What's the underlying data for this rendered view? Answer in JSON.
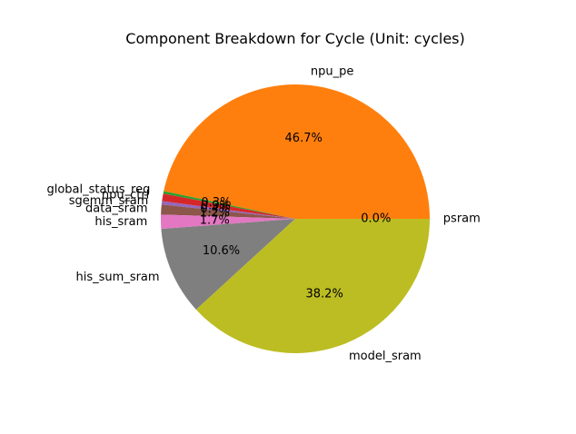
{
  "chart_data": {
    "type": "pie",
    "title": "Component Breakdown for Cycle (Unit: cycles)",
    "slices": [
      {
        "label": "psram",
        "value": 0.0,
        "pct_label": "0.0%",
        "color": "#1f77b4"
      },
      {
        "label": "npu_pe",
        "value": 46.7,
        "pct_label": "46.7%",
        "color": "#ff7f0e"
      },
      {
        "label": "global_status_reg",
        "value": 0.3,
        "pct_label": "0.3%",
        "color": "#2ca02c"
      },
      {
        "label": "npu_ctrl",
        "value": 0.9,
        "pct_label": "0.9%",
        "color": "#d62728"
      },
      {
        "label": "sgemm_sram",
        "value": 0.4,
        "pct_label": "0.4%",
        "color": "#9467bd"
      },
      {
        "label": "data_sram",
        "value": 1.2,
        "pct_label": "1.2%",
        "color": "#8c564b"
      },
      {
        "label": "his_sram",
        "value": 1.7,
        "pct_label": "1.7%",
        "color": "#e377c2"
      },
      {
        "label": "his_sum_sram",
        "value": 10.6,
        "pct_label": "10.6%",
        "color": "#7f7f7f"
      },
      {
        "label": "model_sram",
        "value": 38.2,
        "pct_label": "38.2%",
        "color": "#bcbd22"
      }
    ],
    "start_angle": "3 o'clock",
    "direction": "counterclockwise"
  }
}
